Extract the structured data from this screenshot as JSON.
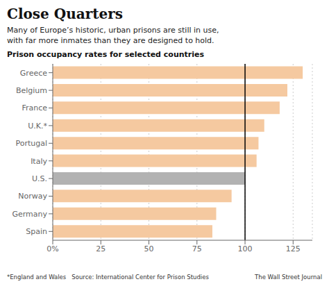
{
  "chart_data": {
    "type": "bar",
    "orientation": "horizontal",
    "title": "Close Quarters",
    "subtitle": "Many of Europe’s historic, urban prisons are still in use,\nwith far more inmates than they are designed to hold.",
    "annotations": [
      "Prison occupancy rates for selected countries",
      "*England and Wales   Source: International Center for Prison Studies",
      "The Wall Street Journal"
    ],
    "categories": [
      "Greece",
      "Belgium",
      "France",
      "U.K.*",
      "Portugal",
      "Italy",
      "U.S.",
      "Norway",
      "Germany",
      "Spain"
    ],
    "values": [
      130,
      122,
      118,
      110,
      107,
      106,
      100,
      93,
      85,
      83
    ],
    "colors": [
      "#f5c9a0",
      "#f5c9a0",
      "#f5c9a0",
      "#f5c9a0",
      "#f5c9a0",
      "#f5c9a0",
      "#b2b2b2",
      "#f5c9a0",
      "#f5c9a0",
      "#f5c9a0"
    ],
    "reference_x": 100,
    "xlim": [
      0,
      135
    ],
    "xticks": [
      {
        "value": 0,
        "label": "0%"
      },
      25,
      50,
      75,
      100,
      125
    ],
    "grid": true
  }
}
